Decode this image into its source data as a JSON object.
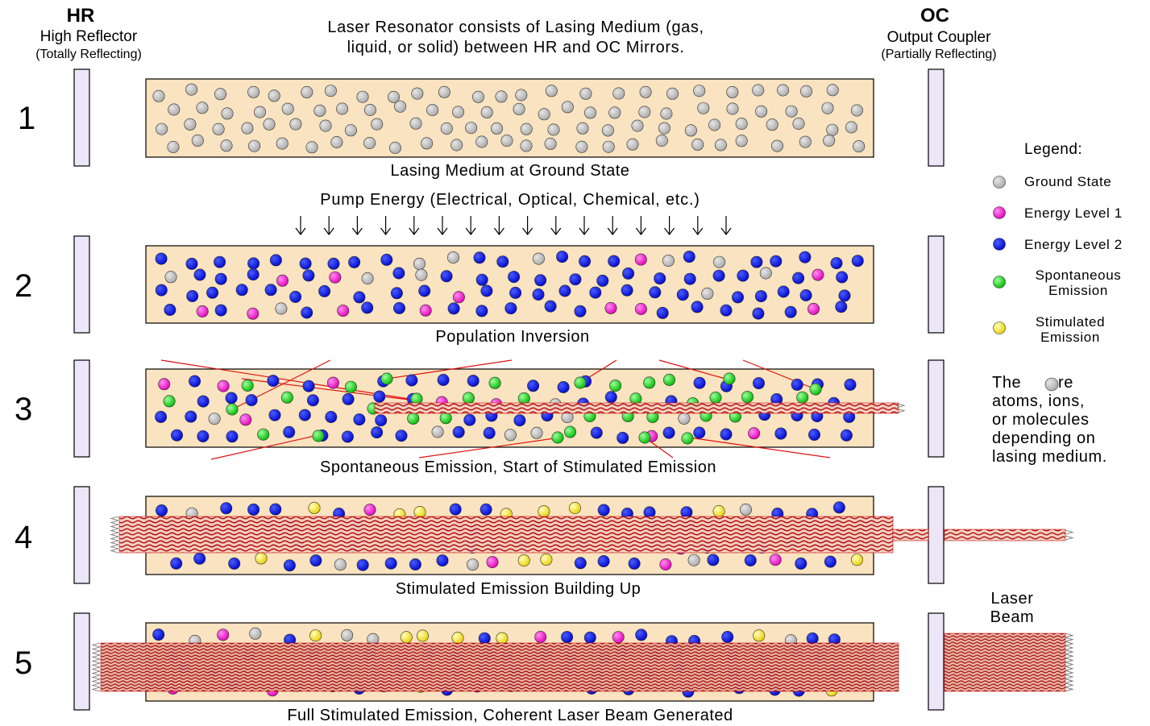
{
  "header": {
    "hr_abbr": "HR",
    "hr_name": "High Reflector",
    "hr_desc": "(Totally Reflecting)",
    "oc_abbr": "OC",
    "oc_name": "Output Coupler",
    "oc_desc": "(Partially Reflecting)",
    "intro_line1": "Laser Resonator consists of Lasing Medium (gas,",
    "intro_line2": "liquid, or solid) between HR and OC Mirrors."
  },
  "pump_label": "Pump Energy (Electrical, Optical, Chemical, etc.)",
  "stages": [
    {
      "number": "1",
      "caption": "Lasing Medium at Ground State"
    },
    {
      "number": "2",
      "caption": "Population Inversion"
    },
    {
      "number": "3",
      "caption": "Spontaneous Emission, Start of Stimulated Emission"
    },
    {
      "number": "4",
      "caption": "Stimulated Emission Building Up"
    },
    {
      "number": "5",
      "caption": "Full Stimulated Emission, Coherent Laser Beam Generated"
    }
  ],
  "laser_beam_label_line1": "Laser",
  "laser_beam_label_line2": "Beam",
  "legend": {
    "title": "Legend:",
    "items": [
      {
        "label_line1": "Ground State",
        "label_line2": "",
        "color": "#c0c0c0"
      },
      {
        "label_line1": "Energy Level 1",
        "label_line2": "",
        "color": "#ff1fd0"
      },
      {
        "label_line1": "Energy Level 2",
        "label_line2": "",
        "color": "#0010e0"
      },
      {
        "label_line1": "Spontaneous",
        "label_line2": "Emission",
        "color": "#10d010"
      },
      {
        "label_line1": "Stimulated",
        "label_line2": "Emission",
        "color": "#ffff20"
      }
    ]
  },
  "note": {
    "line1_before": "The",
    "line1_after": "are",
    "line2": "atoms, ions,",
    "line3": "or molecules",
    "line4": "depending on",
    "line5": "lasing medium."
  },
  "colors": {
    "medium_fill": "#fae3c0",
    "mirror_fill": "#ece6f8",
    "beam_red": "#c00000",
    "ray_red": "#e01010"
  }
}
